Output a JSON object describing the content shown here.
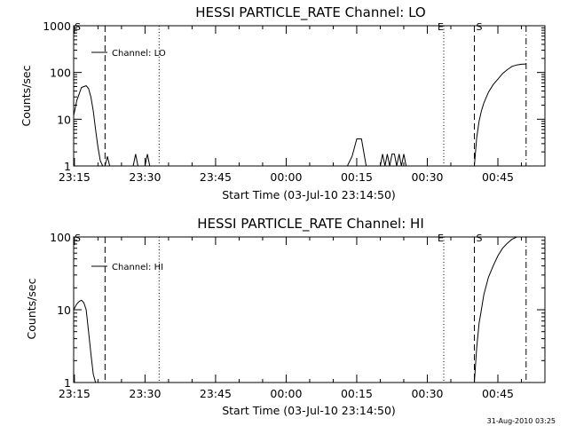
{
  "footer_timestamp": "31-Aug-2010 03:25",
  "chart_data": [
    {
      "type": "line",
      "title": "HESSI PARTICLE_RATE Channel: LO",
      "xlabel": "Start Time (03-Jul-10 23:14:50)",
      "ylabel": "Counts/sec",
      "y_scale": "log",
      "ylim": [
        1,
        1000
      ],
      "y_ticks": [
        1,
        10,
        100,
        1000
      ],
      "y_tick_labels": [
        "1",
        "10",
        "100",
        "1000"
      ],
      "xlim": [
        "23:14:50",
        "00:55:00"
      ],
      "x_ticks": [
        "23:15",
        "23:30",
        "23:45",
        "00:00",
        "00:15",
        "00:30",
        "00:45"
      ],
      "legend": {
        "label": "Channel: LO",
        "placement": "top-left"
      },
      "markers": [
        {
          "label": "S",
          "time": "23:14:50",
          "style": "label-only"
        },
        {
          "time": "23:21:30",
          "style": "dashed"
        },
        {
          "time": "23:33:00",
          "style": "dotted"
        },
        {
          "label": "E",
          "time": "00:33:30",
          "style": "dotted"
        },
        {
          "label": "S",
          "time": "00:40:00",
          "style": "dashed"
        },
        {
          "time": "00:51:00",
          "style": "dash-dot"
        }
      ],
      "series": [
        {
          "name": "Channel: LO",
          "segments": [
            {
              "x": [
                "23:14:50",
                "23:15:30",
                "23:16:30",
                "23:17:30",
                "23:18:00",
                "23:18:30",
                "23:19:00",
                "23:19:30",
                "23:20:00",
                "23:20:30",
                "23:21:00",
                "23:21:30"
              ],
              "y": [
                12,
                25,
                48,
                52,
                45,
                30,
                15,
                6,
                2.5,
                1.3,
                1,
                1
              ]
            },
            {
              "x": [
                "23:21:30",
                "23:22:00",
                "23:22:30"
              ],
              "y": [
                1,
                1.6,
                1
              ]
            },
            {
              "x": [
                "23:27:30",
                "23:28:00",
                "23:28:30"
              ],
              "y": [
                1,
                1.8,
                1
              ]
            },
            {
              "x": [
                "23:30:00",
                "23:30:30",
                "23:31:00"
              ],
              "y": [
                1,
                1.8,
                1
              ]
            },
            {
              "x": [
                "00:13:00",
                "00:14:00",
                "00:15:00",
                "00:16:00",
                "00:17:00"
              ],
              "y": [
                1,
                1.6,
                3.8,
                3.8,
                1
              ]
            },
            {
              "x": [
                "00:20:00",
                "00:20:30",
                "00:21:00",
                "00:21:30",
                "00:22:00",
                "00:22:30",
                "00:23:00",
                "00:23:30",
                "00:24:00",
                "00:24:30",
                "00:25:00",
                "00:25:30",
                "00:26:00"
              ],
              "y": [
                1,
                1.8,
                1,
                1.8,
                1,
                1.8,
                1.8,
                1,
                1.8,
                1,
                1.8,
                1,
                1
              ]
            },
            {
              "x": [
                "00:40:00",
                "00:40:30",
                "00:41:00",
                "00:41:30",
                "00:42:00",
                "00:43:00",
                "00:44:00",
                "00:45:00",
                "00:46:00",
                "00:47:00",
                "00:48:00",
                "00:49:00",
                "00:50:00",
                "00:51:00"
              ],
              "y": [
                1,
                4,
                9,
                15,
                22,
                38,
                55,
                72,
                95,
                115,
                135,
                145,
                150,
                152
              ]
            }
          ]
        }
      ]
    },
    {
      "type": "line",
      "title": "HESSI PARTICLE_RATE Channel: HI",
      "xlabel": "Start Time (03-Jul-10 23:14:50)",
      "ylabel": "Counts/sec",
      "y_scale": "log",
      "ylim": [
        1,
        100
      ],
      "y_ticks": [
        1,
        10,
        100
      ],
      "y_tick_labels": [
        "1",
        "10",
        "100"
      ],
      "xlim": [
        "23:14:50",
        "00:55:00"
      ],
      "x_ticks": [
        "23:15",
        "23:30",
        "23:45",
        "00:00",
        "00:15",
        "00:30",
        "00:45"
      ],
      "legend": {
        "label": "Channel: HI",
        "placement": "top-left"
      },
      "markers": [
        {
          "label": "S",
          "time": "23:14:50",
          "style": "label-only"
        },
        {
          "time": "23:21:30",
          "style": "dashed"
        },
        {
          "time": "23:33:00",
          "style": "dotted"
        },
        {
          "label": "E",
          "time": "00:33:30",
          "style": "dotted"
        },
        {
          "label": "S",
          "time": "00:40:00",
          "style": "dashed"
        },
        {
          "time": "00:51:00",
          "style": "dash-dot"
        }
      ],
      "series": [
        {
          "name": "Channel: HI",
          "segments": [
            {
              "x": [
                "23:14:50",
                "23:15:30",
                "23:16:00",
                "23:16:30",
                "23:17:00",
                "23:17:30",
                "23:18:00",
                "23:18:30",
                "23:19:00",
                "23:19:30",
                "23:20:00"
              ],
              "y": [
                10,
                12,
                13,
                13.5,
                12.5,
                10,
                5,
                2.5,
                1.3,
                1,
                1
              ]
            },
            {
              "x": [
                "00:40:00",
                "00:40:30",
                "00:41:00",
                "00:41:30",
                "00:42:00",
                "00:43:00",
                "00:44:00",
                "00:45:00",
                "00:46:00",
                "00:47:00",
                "00:48:00",
                "00:49:00",
                "00:50:00",
                "00:51:00"
              ],
              "y": [
                1,
                3,
                6.5,
                10,
                16,
                28,
                40,
                55,
                70,
                82,
                93,
                100,
                100,
                100
              ]
            }
          ]
        }
      ]
    }
  ]
}
